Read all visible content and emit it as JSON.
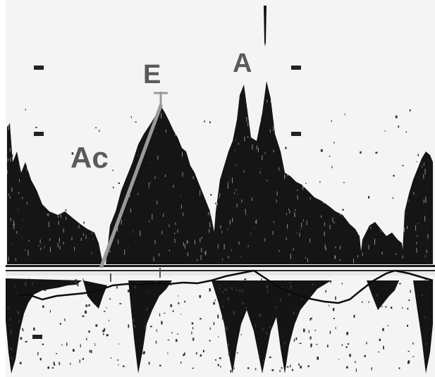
{
  "labels": {
    "ac": "Ac",
    "e": "E",
    "a": "A"
  },
  "colors": {
    "background": "#ffffff",
    "signal": "#111111",
    "label_gray": "#5a5a5a",
    "slope_line": "#9a9a9a",
    "baseline": "#1a1a1a"
  }
}
